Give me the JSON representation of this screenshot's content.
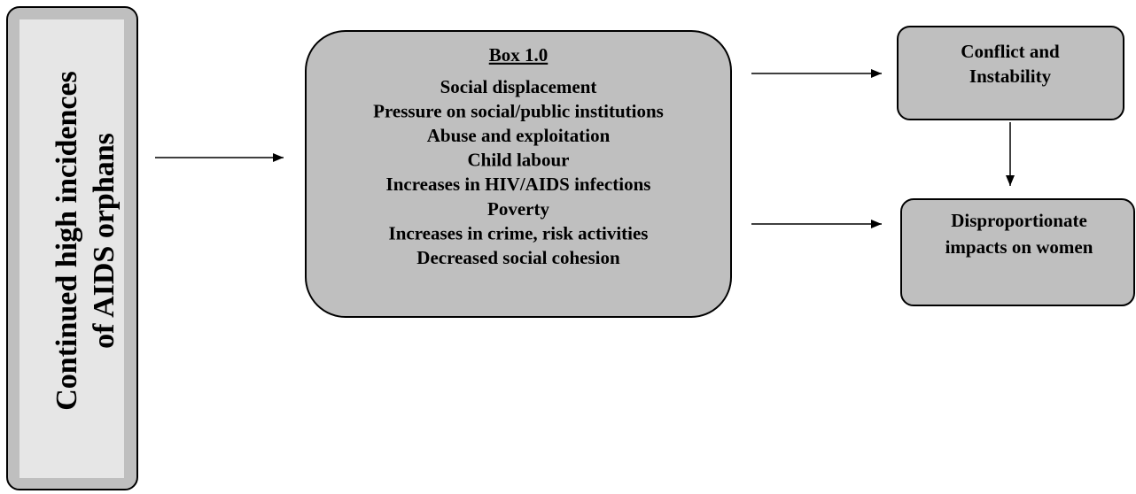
{
  "source": {
    "lines": [
      "Continued high incidences",
      "of AIDS orphans"
    ]
  },
  "box": {
    "heading": "Box 1.0",
    "items": [
      "Social displacement",
      "Pressure on social/public institutions",
      "Abuse and exploitation",
      "Child labour",
      "Increases in HIV/AIDS infections",
      "Poverty",
      "Increases in crime, risk activities",
      "Decreased social cohesion"
    ]
  },
  "outcomes": [
    {
      "lines": [
        "Conflict and",
        "Instability"
      ]
    },
    {
      "lines": [
        "Disproportionate",
        "impacts on women"
      ]
    }
  ]
}
